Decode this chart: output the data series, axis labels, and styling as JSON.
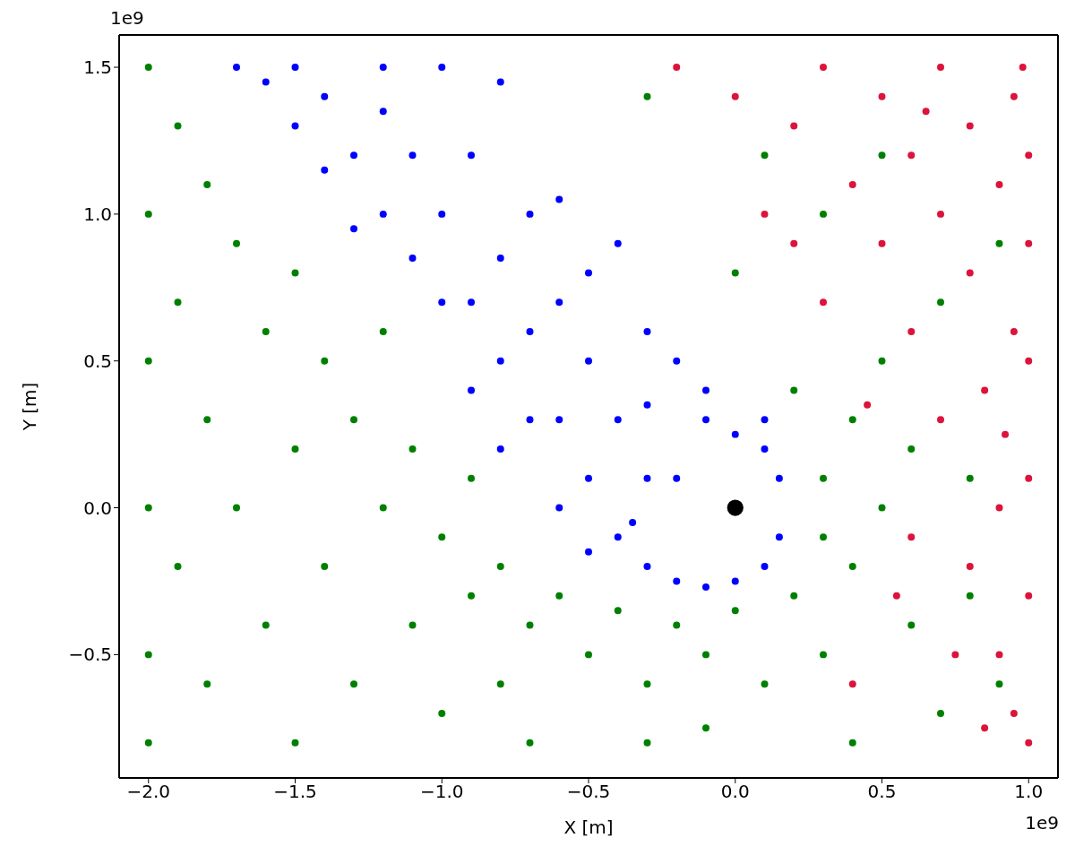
{
  "chart_data": {
    "type": "scatter",
    "xlabel": "X [m]",
    "ylabel": "Y [m]",
    "xlim": [
      -2.1,
      1.1
    ],
    "ylim": [
      -0.92,
      1.61
    ],
    "xticks": [
      {
        "value": -2,
        "label": "−2.0"
      },
      {
        "value": -1.5,
        "label": "−1.5"
      },
      {
        "value": -1,
        "label": "−1.0"
      },
      {
        "value": -0.5,
        "label": "−0.5"
      },
      {
        "value": 0,
        "label": "0.0"
      },
      {
        "value": 0.5,
        "label": "0.5"
      },
      {
        "value": 1,
        "label": "1.0"
      }
    ],
    "yticks": [
      {
        "value": -0.5,
        "label": "−0.5"
      },
      {
        "value": 0,
        "label": "0.0"
      },
      {
        "value": 0.5,
        "label": "0.5"
      },
      {
        "value": 1,
        "label": "1.0"
      },
      {
        "value": 1.5,
        "label": "1.5"
      }
    ],
    "annotations": [
      "1e9",
      "1e9"
    ],
    "marker": "circle",
    "series": [
      {
        "color": "#008000",
        "x": [
          -2,
          -2,
          -2,
          -2,
          -2,
          -2,
          -1.9,
          -1.9,
          -1.9,
          -1.8,
          -1.8,
          -1.8,
          -1.7,
          -1.7,
          -1.6,
          -1.6,
          -1.5,
          -1.5,
          -1.5,
          -1.4,
          -1.4,
          -1.3,
          -1.3,
          -1.2,
          -1.2,
          -1.1,
          -1.1,
          -1,
          -1,
          -0.9,
          -0.9,
          -0.8,
          -0.8,
          -0.7,
          -0.7,
          -0.6,
          -0.5,
          -0.4,
          -0.3,
          -0.3,
          -0.2,
          -0.1,
          0,
          0.1,
          0.2,
          0.3,
          0.3,
          0.3,
          0.4,
          0.4,
          0.5,
          0.5,
          0.6,
          0.6,
          0.7,
          0.7,
          0.8,
          0.8,
          0.9,
          0.9,
          0.2,
          0.3,
          0.1,
          0.5,
          -0.3,
          0,
          -0.1,
          0.4
        ],
        "values": [
          1.5,
          1,
          0.5,
          0,
          -0.5,
          -0.8,
          1.3,
          0.7,
          -0.2,
          1.1,
          0.3,
          -0.6,
          0.9,
          0,
          0.6,
          -0.4,
          0.8,
          0.2,
          -0.8,
          0.5,
          -0.2,
          0.3,
          -0.6,
          0.6,
          0,
          0.2,
          -0.4,
          -0.1,
          -0.7,
          0.1,
          -0.3,
          -0.2,
          -0.6,
          -0.4,
          -0.8,
          -0.3,
          -0.5,
          -0.35,
          -0.6,
          -0.8,
          -0.4,
          -0.5,
          -0.35,
          -0.6,
          -0.3,
          -0.1,
          0.1,
          -0.5,
          0.3,
          -0.2,
          0,
          0.5,
          -0.4,
          0.2,
          0.7,
          -0.7,
          0.1,
          -0.3,
          0.9,
          -0.6,
          0.4,
          1,
          1.2,
          1.2,
          1.4,
          0.8,
          -0.75,
          -0.8
        ]
      },
      {
        "color": "#dc143c",
        "x": [
          0,
          0.1,
          0.2,
          0.3,
          0.3,
          0.4,
          0.5,
          0.5,
          0.6,
          0.6,
          0.7,
          0.7,
          0.7,
          0.8,
          0.8,
          0.8,
          0.85,
          0.9,
          0.9,
          0.9,
          0.95,
          0.95,
          0.95,
          1,
          1,
          1,
          1,
          1,
          1,
          0.2,
          0.4,
          0.6,
          -0.2,
          0.85,
          0.75,
          0.45,
          0.98,
          0.92,
          0.65,
          0.55
        ],
        "values": [
          1.4,
          1,
          1.3,
          1.5,
          0.7,
          1.1,
          0.9,
          1.4,
          0.6,
          1.2,
          1,
          0.3,
          1.5,
          0.8,
          -0.2,
          1.3,
          0.4,
          1.1,
          0,
          -0.5,
          0.6,
          1.4,
          -0.7,
          1.2,
          0.9,
          0.5,
          0.1,
          -0.3,
          -0.8,
          0.9,
          -0.6,
          -0.1,
          1.5,
          -0.75,
          -0.5,
          0.35,
          1.5,
          0.25,
          1.35,
          -0.3
        ]
      },
      {
        "color": "#0000ff",
        "x": [
          0.15,
          0.15,
          0.1,
          0.1,
          0,
          0,
          -0.1,
          -0.1,
          -0.2,
          -0.3,
          -0.2,
          -0.3,
          -0.35,
          -0.4,
          -0.5,
          -0.5,
          -0.6,
          -0.6,
          -0.7,
          -0.7,
          -0.8,
          -0.8,
          -0.9,
          -0.9,
          -1,
          -1,
          -1.1,
          -1.1,
          -1.2,
          -1.2,
          -1.3,
          -1.3,
          -1.4,
          -1.4,
          -1.5,
          -1.5,
          -1.6,
          -1.7,
          -1,
          -0.8,
          -0.9,
          -0.6,
          -0.5,
          -0.3,
          -0.2,
          -0.1,
          0.1,
          -0.4,
          -0.5,
          -0.6,
          -0.4,
          -0.7,
          -1.2,
          -0.3,
          -0.8
        ],
        "values": [
          0.1,
          -0.1,
          0.2,
          -0.2,
          0.25,
          -0.25,
          0.3,
          -0.27,
          -0.25,
          -0.2,
          0.1,
          0.1,
          -0.05,
          0.3,
          0.1,
          0.5,
          0.3,
          0,
          0.6,
          0.3,
          0.5,
          0.85,
          0.7,
          0.4,
          1,
          0.7,
          0.85,
          1.2,
          1,
          1.35,
          1.2,
          0.95,
          1.4,
          1.15,
          1.3,
          1.5,
          1.45,
          1.5,
          1.5,
          1.45,
          1.2,
          1.05,
          0.8,
          0.6,
          0.5,
          0.4,
          0.3,
          -0.1,
          -0.15,
          0.7,
          0.9,
          1,
          1.5,
          0.35,
          0.2
        ]
      },
      {
        "color": "#000000",
        "x": [
          0
        ],
        "values": [
          0
        ]
      }
    ]
  }
}
